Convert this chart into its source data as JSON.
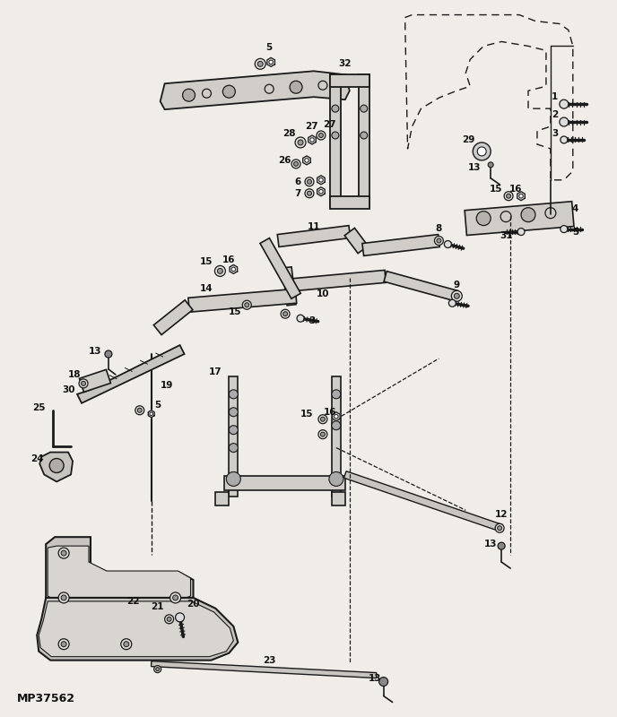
{
  "bg_color": "#f0ede8",
  "line_color": "#1a1a1a",
  "diagram_id": "MP37562",
  "figsize": [
    6.88,
    8.0
  ],
  "dpi": 100
}
